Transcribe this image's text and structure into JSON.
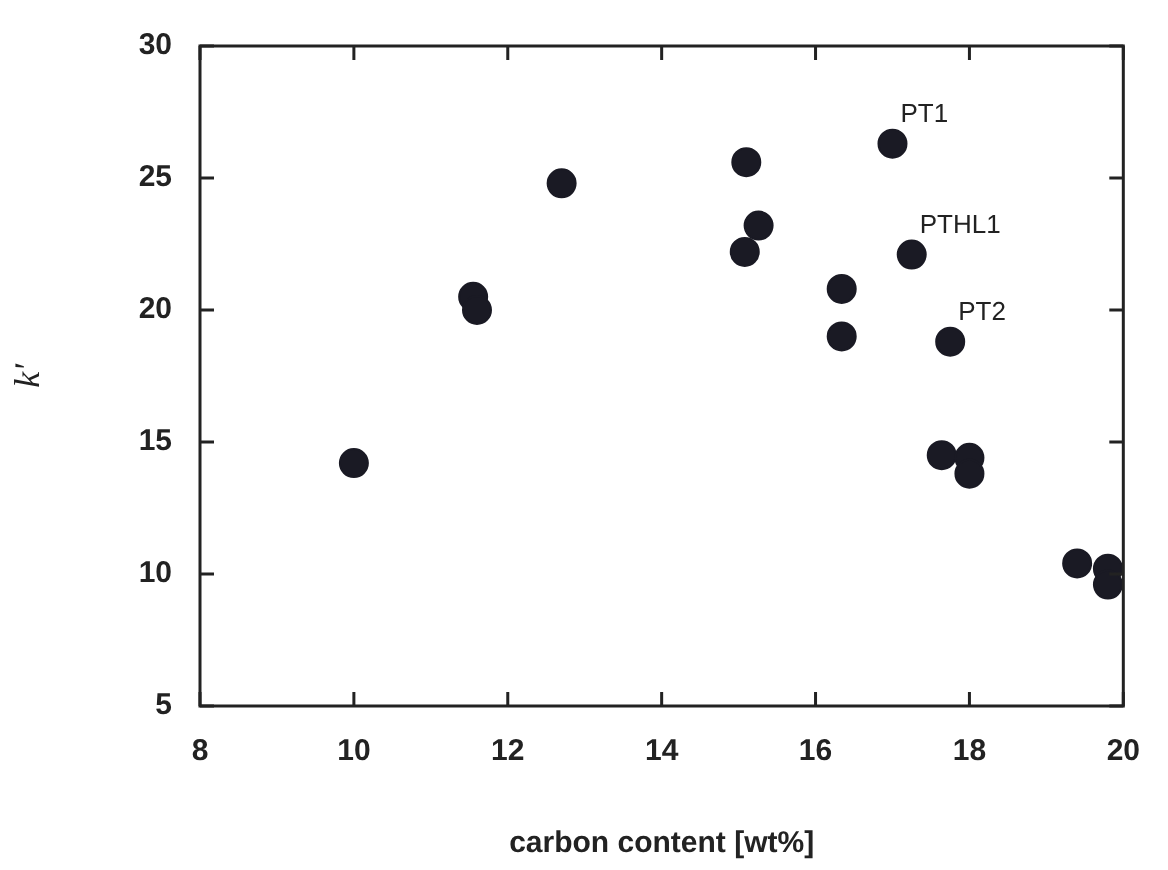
{
  "chart_data": {
    "type": "scatter",
    "xlabel": "carbon content [wt%]",
    "ylabel": "k'",
    "x": [
      10.0,
      11.55,
      11.6,
      12.7,
      15.1,
      15.26,
      15.08,
      16.34,
      16.34,
      17.0,
      17.25,
      17.75,
      17.64,
      18.0,
      18.0,
      19.4,
      19.8,
      19.8
    ],
    "values": [
      14.2,
      20.5,
      20.0,
      24.8,
      25.6,
      23.2,
      22.2,
      20.8,
      19.0,
      26.3,
      22.1,
      18.8,
      14.5,
      14.4,
      13.8,
      10.4,
      10.2,
      9.6
    ],
    "color": "#1a1a24",
    "marker": "circle",
    "grid": false,
    "legend": false,
    "xlim": [
      8,
      20
    ],
    "xticks": [
      8,
      10,
      12,
      14,
      16,
      18,
      20
    ],
    "ylim": [
      5,
      30
    ],
    "yticks": [
      5,
      10,
      15,
      20,
      25,
      30
    ],
    "annotations": [
      {
        "text": "PT1",
        "x": 17.0,
        "y": 26.3
      },
      {
        "text": "PTHL1",
        "x": 17.25,
        "y": 22.1
      },
      {
        "text": "PT2",
        "x": 17.75,
        "y": 18.8
      }
    ]
  }
}
